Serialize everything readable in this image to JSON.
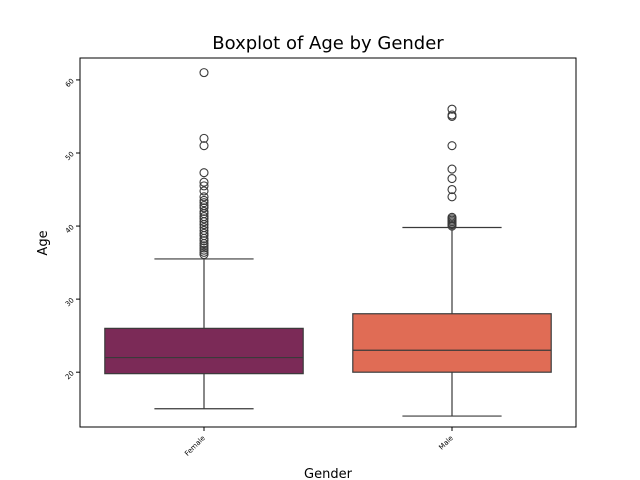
{
  "chart_data": {
    "type": "box",
    "title": "Boxplot of Age by Gender",
    "xlabel": "Gender",
    "ylabel": "Age",
    "ylim": [
      12.5,
      63.0
    ],
    "yticks": [
      20,
      30,
      40,
      50,
      60
    ],
    "grid": false,
    "legend": "none",
    "categories": [
      "Female",
      "Male"
    ],
    "boxes": [
      {
        "category": "Female",
        "color": "#7b2a57",
        "q1": 19.8,
        "median": 22.0,
        "q3": 26.0,
        "whisker_low": 15.0,
        "whisker_high": 35.5,
        "outliers": [
          61.0,
          52.0,
          51.0,
          47.3,
          46.0,
          45.5,
          44.8,
          44.0,
          43.5,
          43.2,
          42.8,
          42.5,
          42.0,
          41.7,
          41.3,
          41.0,
          40.6,
          40.2,
          39.8,
          39.4,
          39.0,
          38.7,
          38.3,
          38.0,
          37.6,
          37.3,
          37.0,
          36.7,
          36.4,
          36.1
        ]
      },
      {
        "category": "Male",
        "color": "#e06c55",
        "q1": 20.0,
        "median": 23.0,
        "q3": 28.0,
        "whisker_low": 14.0,
        "whisker_high": 39.8,
        "outliers": [
          56.0,
          55.2,
          55.0,
          51.0,
          47.8,
          46.5,
          45.0,
          44.0,
          41.2,
          41.0,
          40.8,
          40.6,
          40.4,
          40.2,
          40.0
        ]
      }
    ]
  }
}
